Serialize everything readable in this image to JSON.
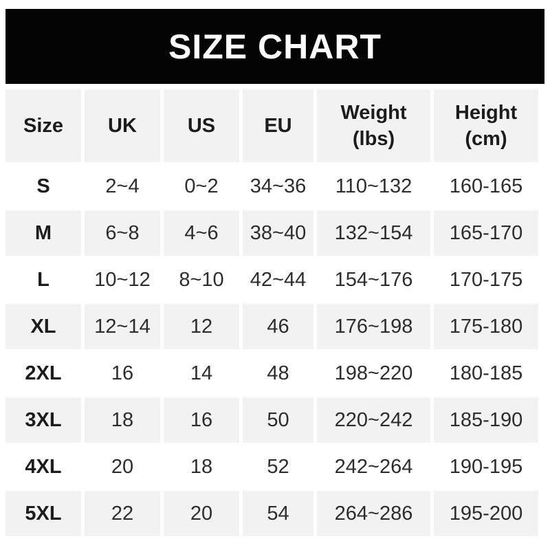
{
  "banner": {
    "title": "SIZE CHART"
  },
  "colors": {
    "banner_bg": "#040404",
    "banner_text": "#ffffff",
    "row_stripe": "#f2f2f2",
    "header_text": "#1c1c1c",
    "data_text": "#2d2d2d",
    "page_bg": "#ffffff"
  },
  "table": {
    "headers": [
      [
        "Size"
      ],
      [
        "UK"
      ],
      [
        "US"
      ],
      [
        "EU"
      ],
      [
        "Weight",
        "(lbs)"
      ],
      [
        "Height",
        "(cm)"
      ]
    ],
    "rows": [
      [
        "S",
        "2~4",
        "0~2",
        "34~36",
        "110~132",
        "160-165"
      ],
      [
        "M",
        "6~8",
        "4~6",
        "38~40",
        "132~154",
        "165-170"
      ],
      [
        "L",
        "10~12",
        "8~10",
        "42~44",
        "154~176",
        "170-175"
      ],
      [
        "XL",
        "12~14",
        "12",
        "46",
        "176~198",
        "175-180"
      ],
      [
        "2XL",
        "16",
        "14",
        "48",
        "198~220",
        "180-185"
      ],
      [
        "3XL",
        "18",
        "16",
        "50",
        "220~242",
        "185-190"
      ],
      [
        "4XL",
        "20",
        "18",
        "52",
        "242~264",
        "190-195"
      ],
      [
        "5XL",
        "22",
        "20",
        "54",
        "264~286",
        "195-200"
      ]
    ]
  },
  "chart_data": {
    "type": "table",
    "title": "SIZE CHART",
    "columns": [
      "Size",
      "UK",
      "US",
      "EU",
      "Weight (lbs)",
      "Height (cm)"
    ],
    "rows": [
      {
        "size": "S",
        "uk": "2~4",
        "us": "0~2",
        "eu": "34~36",
        "weight_lbs": "110~132",
        "height_cm": "160-165"
      },
      {
        "size": "M",
        "uk": "6~8",
        "us": "4~6",
        "eu": "38~40",
        "weight_lbs": "132~154",
        "height_cm": "165-170"
      },
      {
        "size": "L",
        "uk": "10~12",
        "us": "8~10",
        "eu": "42~44",
        "weight_lbs": "154~176",
        "height_cm": "170-175"
      },
      {
        "size": "XL",
        "uk": "12~14",
        "us": "12",
        "eu": "46",
        "weight_lbs": "176~198",
        "height_cm": "175-180"
      },
      {
        "size": "2XL",
        "uk": "16",
        "us": "14",
        "eu": "48",
        "weight_lbs": "198~220",
        "height_cm": "180-185"
      },
      {
        "size": "3XL",
        "uk": "18",
        "us": "16",
        "eu": "50",
        "weight_lbs": "220~242",
        "height_cm": "185-190"
      },
      {
        "size": "4XL",
        "uk": "20",
        "us": "18",
        "eu": "52",
        "weight_lbs": "242~264",
        "height_cm": "190-195"
      },
      {
        "size": "5XL",
        "uk": "22",
        "us": "20",
        "eu": "54",
        "weight_lbs": "264~286",
        "height_cm": "195-200"
      }
    ],
    "layout": {
      "header_background": "#f2f2f2",
      "row_striping": "white-then-gray alternating starting with white for S",
      "column_separator": "thin white gaps"
    }
  }
}
